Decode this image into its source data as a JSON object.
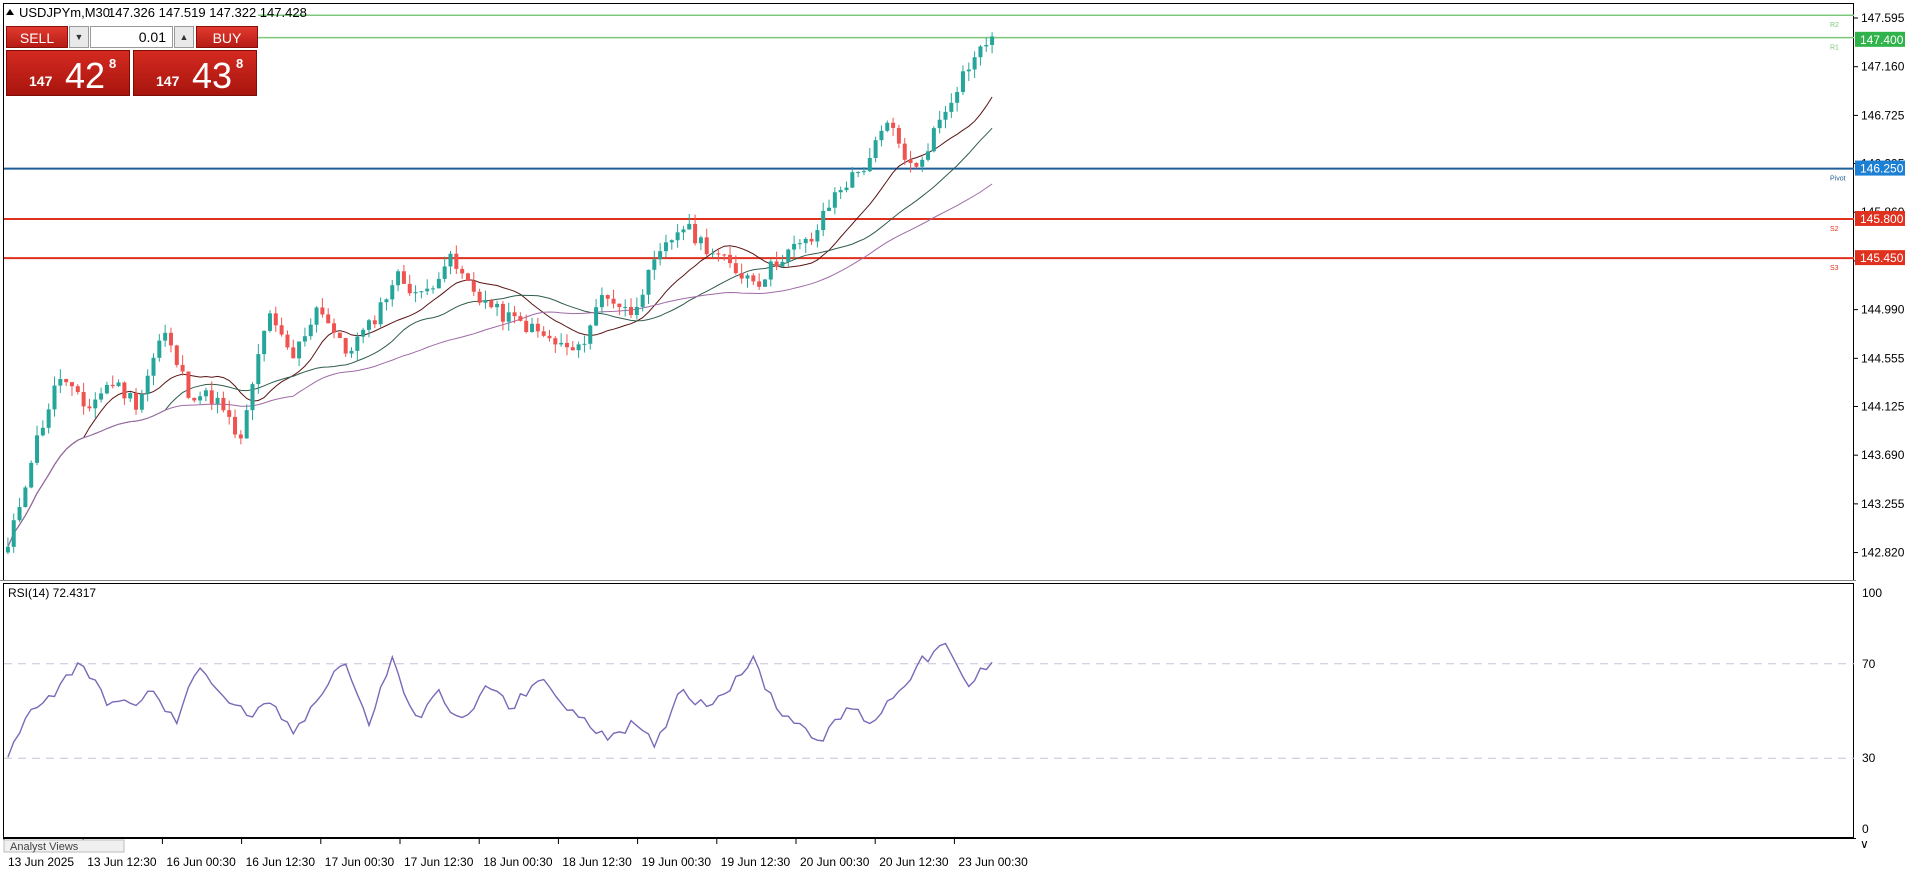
{
  "header": {
    "symbol_title": "USDJPYm,M30",
    "ohlc": "147.326 147.519 147.322 147.428"
  },
  "one_click": {
    "sell_label": "SELL",
    "buy_label": "BUY",
    "volume": "0.01",
    "bid": {
      "prefix": "147",
      "big": "42",
      "sup": "8"
    },
    "ask": {
      "prefix": "147",
      "big": "43",
      "sup": "8"
    }
  },
  "price_axis": {
    "ticks": [
      "147.595",
      "147.160",
      "146.725",
      "146.295",
      "145.860",
      "145.425",
      "144.990",
      "144.555",
      "144.125",
      "143.690",
      "143.255",
      "142.820"
    ],
    "current_price": "147.400",
    "tags": [
      {
        "label": "147.400",
        "color": "#2fb34a"
      },
      {
        "label": "146.250",
        "color": "#1b7fd4"
      },
      {
        "label": "145.800",
        "color": "#e0301e"
      },
      {
        "label": "145.450",
        "color": "#e0301e"
      }
    ]
  },
  "levels": [
    {
      "name": "R2",
      "price": 147.62,
      "color": "#7cc77c"
    },
    {
      "name": "R1",
      "price": 147.42,
      "color": "#7cc77c"
    },
    {
      "name": "Pivot",
      "price": 146.25,
      "color": "#1f5e96"
    },
    {
      "name": "S2",
      "price": 145.8,
      "color": "#e0301e"
    },
    {
      "name": "S3",
      "price": 145.45,
      "color": "#e0301e"
    }
  ],
  "level_labels": [
    "R2",
    "R1",
    "Pivot",
    "S2",
    "S3"
  ],
  "rsi": {
    "title": "RSI(14) 72.4317",
    "ticks": [
      "100",
      "70",
      "30",
      "0"
    ],
    "levels": [
      70,
      30
    ]
  },
  "time_axis": {
    "labels": [
      "13 Jun 2025",
      "13 Jun 12:30",
      "16 Jun 00:30",
      "16 Jun 12:30",
      "17 Jun 00:30",
      "17 Jun 12:30",
      "18 Jun 00:30",
      "18 Jun 12:30",
      "19 Jun 00:30",
      "19 Jun 12:30",
      "20 Jun 00:30",
      "20 Jun 12:30",
      "23 Jun 00:30"
    ]
  },
  "bottom_tab": "Analyst Views",
  "colors": {
    "up_candle": "#26a69a",
    "down_candle": "#ef5350",
    "rsi_line": "#7b68b8",
    "ma_fast": "#5a1414",
    "ma_mid": "#2f5d4a",
    "ma_slow": "#a06aa8"
  },
  "chart_data": {
    "type": "line",
    "close_waypoints": [
      142.85,
      143.75,
      144.4,
      144.1,
      144.35,
      144.15,
      144.8,
      144.25,
      144.2,
      143.8,
      144.95,
      144.55,
      145.05,
      144.6,
      144.85,
      145.3,
      145.1,
      145.45,
      145.15,
      144.95,
      144.85,
      144.7,
      144.6,
      145.15,
      144.95,
      145.4,
      145.75,
      145.55,
      145.35,
      145.25,
      145.5,
      145.6,
      146.05,
      146.25,
      146.65,
      146.2,
      146.7,
      147.15,
      147.43
    ],
    "rsi_waypoints": [
      30,
      52,
      58,
      72,
      55,
      52,
      58,
      45,
      70,
      56,
      48,
      52,
      40,
      58,
      72,
      44,
      72,
      46,
      58,
      44,
      62,
      50,
      64,
      55,
      45,
      40,
      44,
      35,
      60,
      52,
      60,
      72,
      52,
      44,
      38,
      52,
      45,
      58,
      70,
      78,
      60,
      72
    ]
  }
}
